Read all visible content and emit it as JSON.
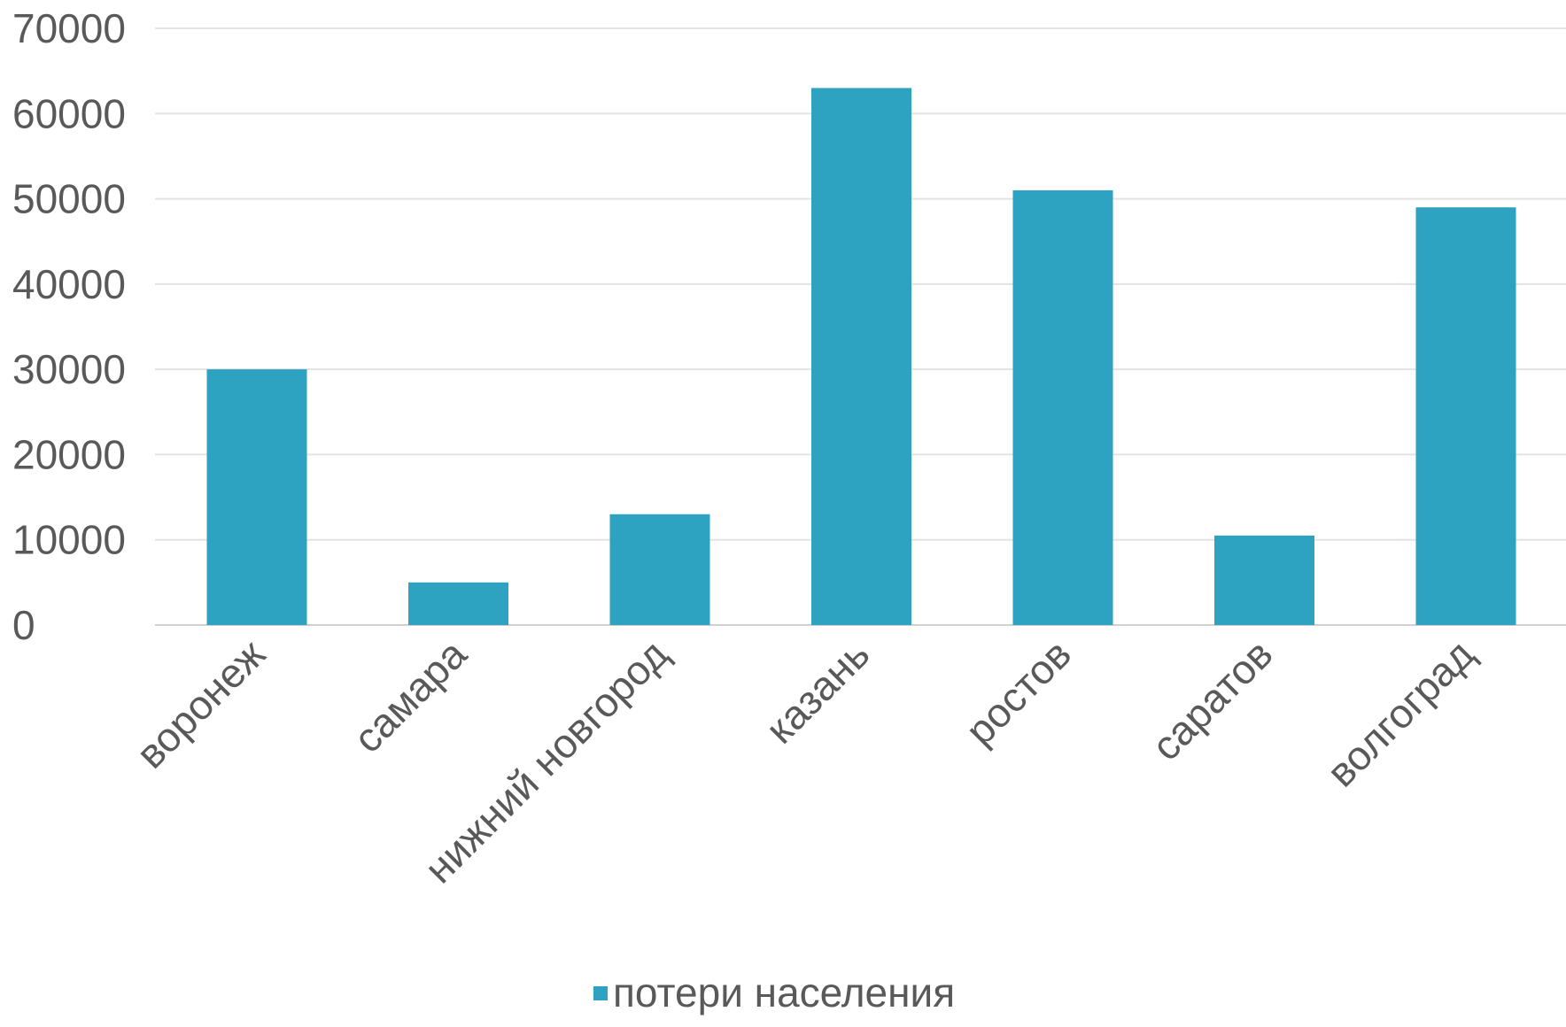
{
  "chart_data": {
    "type": "bar",
    "title": "",
    "xlabel": "",
    "ylabel": "",
    "categories": [
      "воронеж",
      "самара",
      "нижний новгород",
      "казань",
      "ростов",
      "саратов",
      "волгоград"
    ],
    "series": [
      {
        "name": "потери населения",
        "values": [
          30000,
          5000,
          13000,
          63000,
          51000,
          10500,
          49000
        ],
        "color": "#2ea3c1"
      }
    ],
    "ylim": [
      0,
      70000
    ],
    "yticks": [
      0,
      10000,
      20000,
      30000,
      40000,
      50000,
      60000,
      70000
    ],
    "grid": true,
    "legend_position": "bottom"
  }
}
